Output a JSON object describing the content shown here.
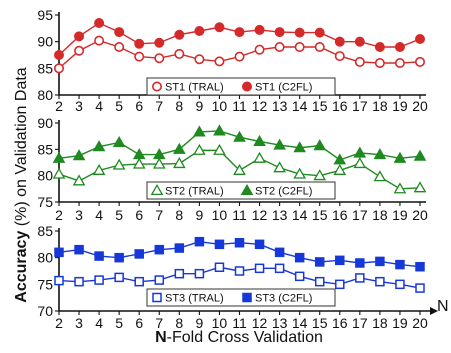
{
  "chart_data": [
    {
      "type": "line",
      "panel": "ST1",
      "x": [
        2,
        3,
        4,
        5,
        6,
        7,
        8,
        9,
        10,
        11,
        12,
        13,
        14,
        15,
        16,
        17,
        18,
        19,
        20
      ],
      "ylim": [
        80,
        95
      ],
      "yticks": [
        80,
        85,
        90,
        95
      ],
      "series": [
        {
          "name": "ST1 (TRAL)",
          "color": "#d42a2a",
          "marker": "open-circle",
          "values": [
            85.0,
            88.3,
            90.2,
            89.0,
            87.2,
            86.9,
            87.7,
            86.7,
            86.3,
            87.2,
            88.5,
            89.0,
            89.0,
            89.0,
            87.3,
            86.2,
            86.0,
            86.0,
            86.2
          ]
        },
        {
          "name": "ST1 (C2FL)",
          "color": "#d42a2a",
          "marker": "filled-circle",
          "values": [
            87.5,
            91.0,
            93.5,
            91.8,
            89.6,
            89.8,
            91.3,
            92.0,
            92.7,
            91.8,
            92.2,
            91.8,
            91.7,
            91.7,
            90.0,
            90.0,
            89.0,
            89.0,
            90.5
          ]
        }
      ]
    },
    {
      "type": "line",
      "panel": "ST2",
      "x": [
        2,
        3,
        4,
        5,
        6,
        7,
        8,
        9,
        10,
        11,
        12,
        13,
        14,
        15,
        16,
        17,
        18,
        19,
        20
      ],
      "ylim": [
        75,
        90
      ],
      "yticks": [
        75,
        80,
        85,
        90
      ],
      "series": [
        {
          "name": "ST2 (TRAL)",
          "color": "#1f8a1f",
          "marker": "open-triangle",
          "values": [
            80.3,
            79.0,
            81.0,
            82.0,
            82.2,
            82.2,
            82.3,
            84.8,
            84.8,
            81.0,
            83.3,
            81.5,
            80.3,
            80.0,
            81.0,
            82.3,
            79.8,
            77.5,
            77.7
          ]
        },
        {
          "name": "ST2 (C2FL)",
          "color": "#1f8a1f",
          "marker": "filled-triangle",
          "values": [
            83.3,
            83.8,
            85.5,
            86.3,
            84.0,
            84.0,
            85.0,
            88.3,
            88.5,
            87.3,
            86.5,
            85.8,
            85.3,
            85.7,
            83.0,
            84.3,
            84.0,
            83.3,
            83.7
          ]
        }
      ]
    },
    {
      "type": "line",
      "panel": "ST3",
      "x": [
        2,
        3,
        4,
        5,
        6,
        7,
        8,
        9,
        10,
        11,
        12,
        13,
        14,
        15,
        16,
        17,
        18,
        19,
        20
      ],
      "ylim": [
        70,
        85
      ],
      "yticks": [
        70,
        75,
        80,
        85
      ],
      "series": [
        {
          "name": "ST3 (TRAL)",
          "color": "#1738d8",
          "marker": "open-square",
          "values": [
            75.7,
            75.5,
            75.8,
            76.3,
            75.5,
            75.8,
            77.0,
            77.0,
            78.2,
            77.5,
            78.0,
            78.0,
            76.5,
            75.5,
            75.0,
            76.2,
            75.5,
            75.0,
            74.3
          ]
        },
        {
          "name": "ST3 (C2FL)",
          "color": "#1738d8",
          "marker": "filled-square",
          "values": [
            81.0,
            81.5,
            80.3,
            80.0,
            80.7,
            81.5,
            81.8,
            83.0,
            82.5,
            82.8,
            82.5,
            81.0,
            80.0,
            79.2,
            79.5,
            79.0,
            79.3,
            78.7,
            78.3
          ]
        }
      ]
    }
  ],
  "axes": {
    "y_title_bold": "Accuracy",
    "y_title_rest": " (%) on Validation Data",
    "x_title_bold": "N",
    "x_title_rest": "-Fold Cross Validation",
    "x_axis_end_label": "N"
  }
}
